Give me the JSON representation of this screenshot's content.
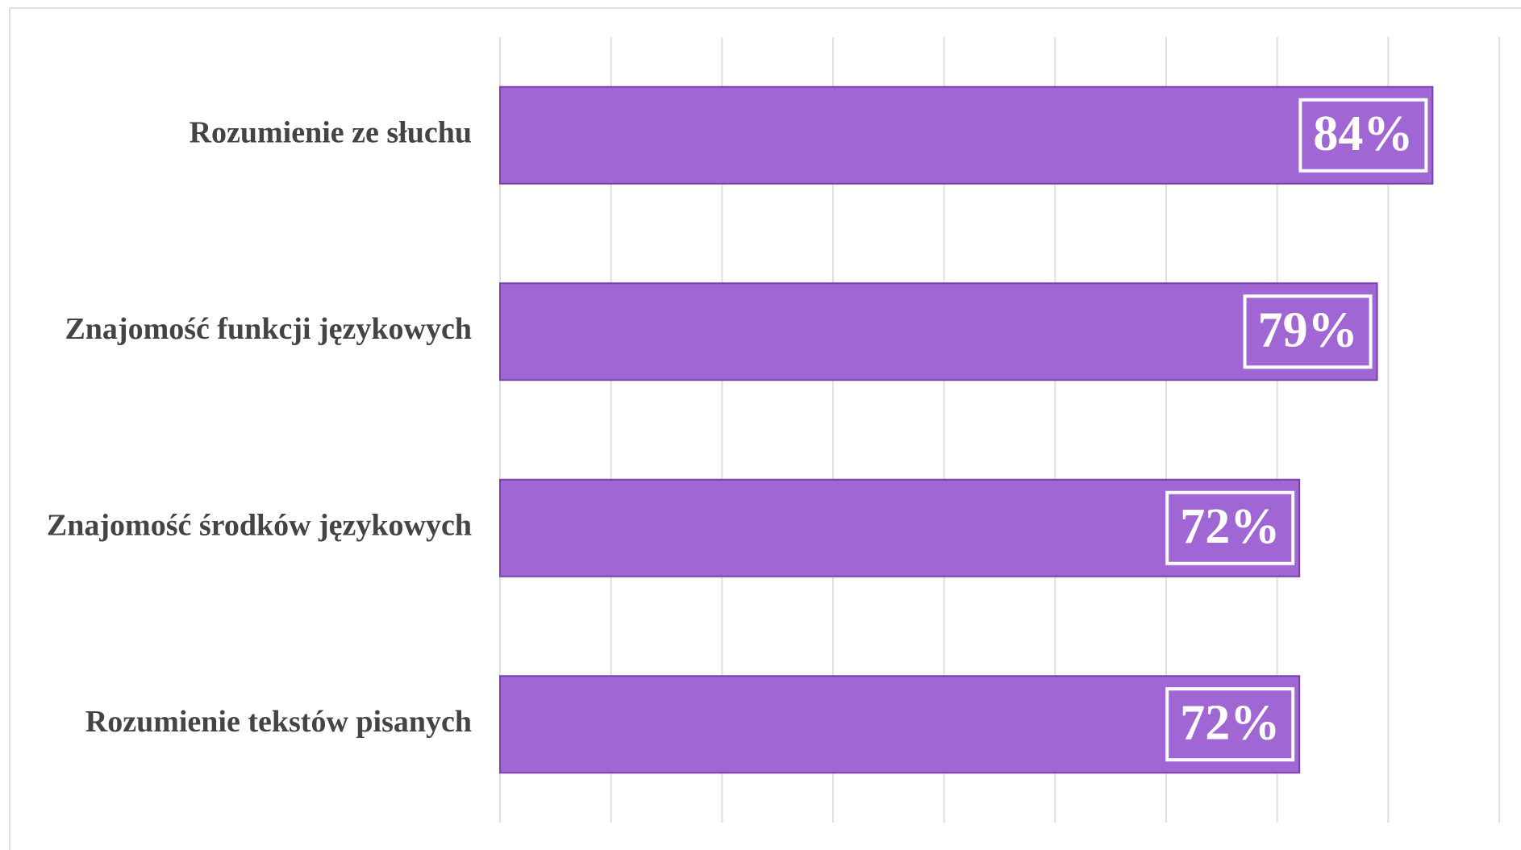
{
  "chart_data": {
    "type": "hbar",
    "categories": [
      "Rozumienie ze słuchu",
      "Znajomość funkcji językowych",
      "Znajomość środków językowych",
      "Rozumienie tekstów pisanych"
    ],
    "values": [
      84,
      79,
      72,
      72
    ],
    "value_labels": [
      "84%",
      "79%",
      "72%",
      "72%"
    ],
    "color": "#a066d3",
    "xlim": [
      0,
      90
    ],
    "xticks": [
      0,
      10,
      20,
      30,
      40,
      50,
      60,
      70,
      80,
      90
    ],
    "grid": true
  }
}
